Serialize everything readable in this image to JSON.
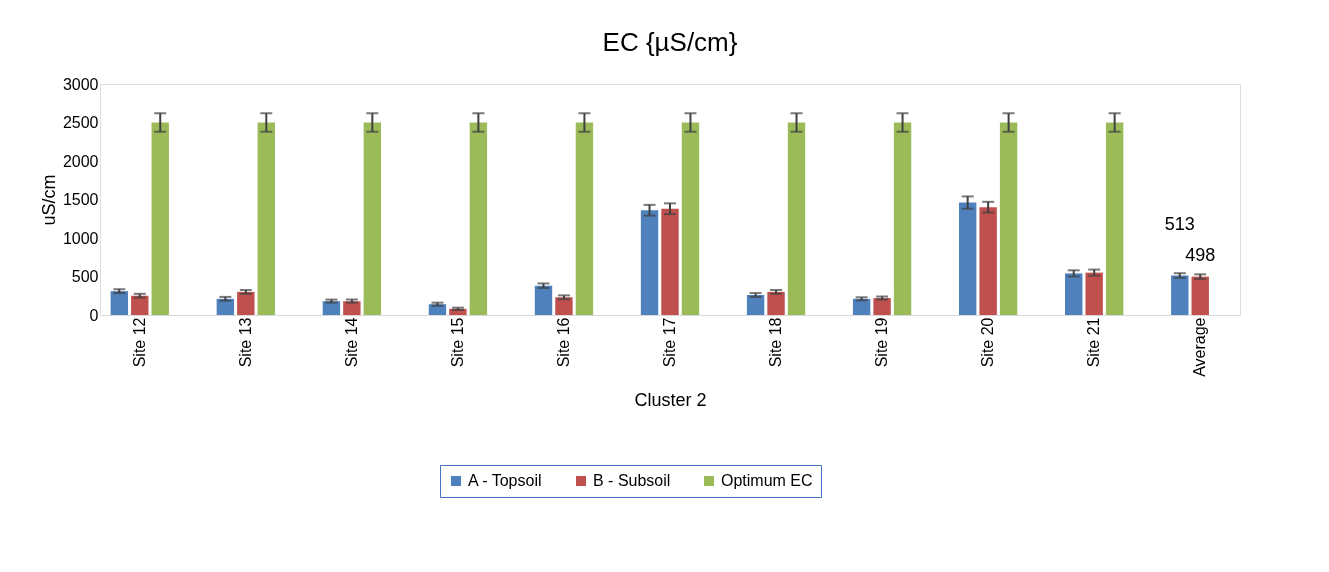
{
  "chart_data": {
    "type": "bar",
    "title": "EC {µS/cm}",
    "xlabel": "Cluster 2",
    "ylabel": "uS/cm",
    "categories": [
      "Site 12",
      "Site 13",
      "Site 14",
      "Site 15",
      "Site 16",
      "Site 17",
      "Site 18",
      "Site 19",
      "Site 20",
      "Site 21",
      "Average"
    ],
    "series": [
      {
        "name": "A - Topsoil",
        "color": "#4f81bd",
        "values": [
          310,
          210,
          180,
          140,
          380,
          1360,
          260,
          210,
          1460,
          540,
          513
        ],
        "errors": [
          25,
          25,
          20,
          20,
          30,
          70,
          25,
          20,
          80,
          40,
          30
        ],
        "value_labels": [
          null,
          null,
          null,
          null,
          null,
          null,
          null,
          null,
          null,
          null,
          "513"
        ]
      },
      {
        "name": "B - Subsoil",
        "color": "#c0504d",
        "values": [
          250,
          300,
          180,
          80,
          230,
          1380,
          300,
          220,
          1400,
          550,
          498
        ],
        "errors": [
          25,
          25,
          20,
          15,
          25,
          70,
          25,
          20,
          70,
          40,
          30
        ],
        "value_labels": [
          null,
          null,
          null,
          null,
          null,
          null,
          null,
          null,
          null,
          null,
          "498"
        ]
      },
      {
        "name": "Optimum EC",
        "color": "#9bbb59",
        "values": [
          2500,
          2500,
          2500,
          2500,
          2500,
          2500,
          2500,
          2500,
          2500,
          2500,
          null
        ],
        "errors": [
          120,
          120,
          120,
          120,
          120,
          120,
          120,
          120,
          120,
          120,
          null
        ]
      }
    ],
    "ylim": [
      0,
      3000
    ],
    "yticks": [
      0,
      500,
      1000,
      1500,
      2000,
      2500,
      3000
    ],
    "grid": false,
    "legend": "bottom"
  }
}
